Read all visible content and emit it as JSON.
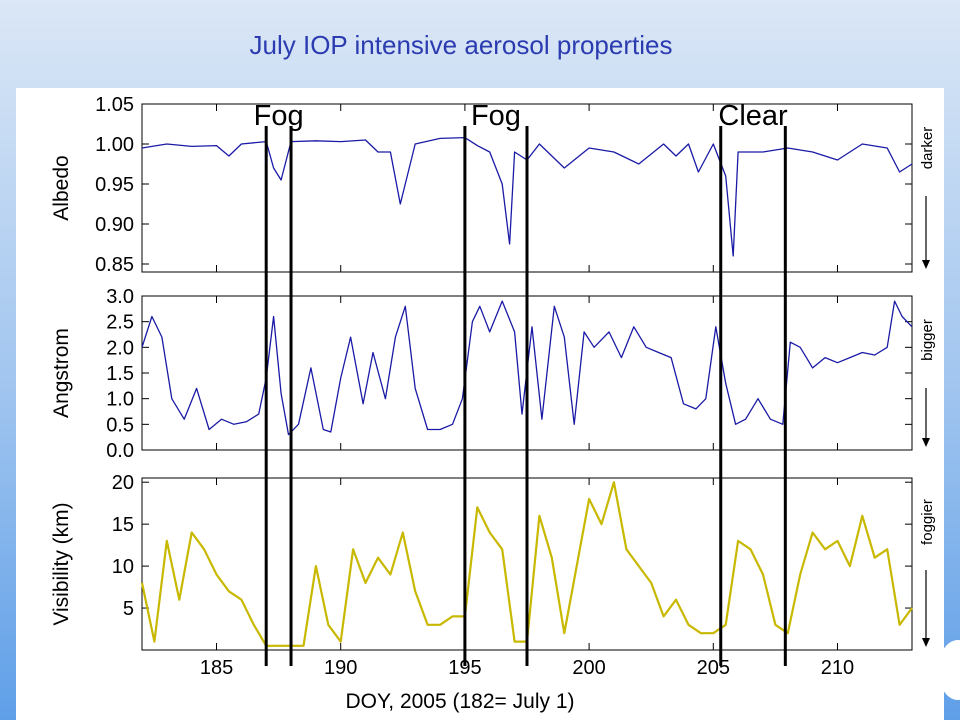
{
  "title": "July IOP intensive aerosol properties",
  "chart_data": {
    "type": "line",
    "x": {
      "label": "DOY, 2005 (182= July 1)",
      "range": [
        182,
        213
      ],
      "ticks": [
        185,
        190,
        195,
        200,
        205,
        210
      ]
    },
    "event_labels": [
      {
        "text": "Fog",
        "from_doy": 187.0,
        "to_doy": 188.0
      },
      {
        "text": "Fog",
        "from_doy": 195.0,
        "to_doy": 197.5
      },
      {
        "text": "Clear",
        "from_doy": 205.3,
        "to_doy": 207.9
      }
    ],
    "panels": [
      {
        "ylabel": "Albedo",
        "ylim": [
          0.84,
          1.05
        ],
        "yticks": [
          "1.05",
          "1.00",
          "0.95",
          "0.90",
          "0.85"
        ],
        "ytick_values": [
          1.05,
          1.0,
          0.95,
          0.9,
          0.85
        ],
        "side_label": "darker",
        "color": "#1a1aa6",
        "series": {
          "x": [
            182,
            183,
            184,
            185,
            185.5,
            186,
            187,
            187.3,
            187.6,
            188,
            189,
            190,
            191,
            191.5,
            192,
            192.4,
            193,
            194,
            195,
            195.5,
            196,
            196.5,
            196.8,
            197,
            197.5,
            198,
            199,
            200,
            201,
            202,
            203,
            203.5,
            204,
            204.4,
            205,
            205.5,
            205.8,
            206,
            207,
            208,
            209,
            210,
            211,
            212,
            212.5,
            213
          ],
          "values": [
            0.995,
            1.0,
            0.997,
            0.998,
            0.985,
            1.0,
            1.003,
            0.97,
            0.955,
            1.003,
            1.004,
            1.003,
            1.005,
            0.99,
            0.99,
            0.925,
            1.0,
            1.007,
            1.008,
            0.998,
            0.99,
            0.95,
            0.875,
            0.99,
            0.98,
            1.0,
            0.97,
            0.995,
            0.99,
            0.975,
            1.0,
            0.985,
            1.0,
            0.965,
            1.0,
            0.96,
            0.86,
            0.99,
            0.99,
            0.995,
            0.99,
            0.98,
            1.0,
            0.995,
            0.965,
            0.975
          ]
        }
      },
      {
        "ylabel": "Angstrom",
        "ylim": [
          0.0,
          3.0
        ],
        "yticks": [
          "3.0",
          "2.5",
          "2.0",
          "1.5",
          "1.0",
          "0.5",
          "0.0"
        ],
        "ytick_values": [
          3.0,
          2.5,
          2.0,
          1.5,
          1.0,
          0.5,
          0.0
        ],
        "side_label": "bigger",
        "color": "#1a1aa6",
        "series": {
          "x": [
            182,
            182.4,
            182.8,
            183.2,
            183.7,
            184.2,
            184.7,
            185.2,
            185.7,
            186.2,
            186.7,
            187.0,
            187.3,
            187.6,
            187.9,
            188.3,
            188.8,
            189.3,
            189.6,
            190.0,
            190.4,
            190.9,
            191.3,
            191.8,
            192.2,
            192.6,
            193.0,
            193.5,
            194.0,
            194.5,
            194.9,
            195.3,
            195.6,
            196.0,
            196.5,
            197.0,
            197.3,
            197.7,
            198.1,
            198.6,
            199.0,
            199.4,
            199.8,
            200.2,
            200.8,
            201.3,
            201.8,
            202.3,
            202.8,
            203.3,
            203.8,
            204.3,
            204.7,
            205.1,
            205.5,
            205.9,
            206.3,
            206.8,
            207.3,
            207.8,
            208.1,
            208.5,
            209.0,
            209.5,
            210.0,
            210.5,
            211.0,
            211.5,
            212.0,
            212.3,
            212.6,
            213
          ],
          "values": [
            2.0,
            2.6,
            2.2,
            1.0,
            0.6,
            1.2,
            0.4,
            0.6,
            0.5,
            0.55,
            0.7,
            1.4,
            2.6,
            1.1,
            0.3,
            0.5,
            1.6,
            0.4,
            0.35,
            1.4,
            2.2,
            0.9,
            1.9,
            1.0,
            2.2,
            2.8,
            1.2,
            0.4,
            0.4,
            0.5,
            1.0,
            2.5,
            2.8,
            2.3,
            2.9,
            2.3,
            0.7,
            2.4,
            0.6,
            2.8,
            2.2,
            0.5,
            2.3,
            2.0,
            2.3,
            1.8,
            2.4,
            2.0,
            1.9,
            1.8,
            0.9,
            0.8,
            1.0,
            2.4,
            1.3,
            0.5,
            0.6,
            1.0,
            0.6,
            0.5,
            2.1,
            2.0,
            1.6,
            1.8,
            1.7,
            1.8,
            1.9,
            1.85,
            2.0,
            2.9,
            2.6,
            2.4
          ]
        }
      },
      {
        "ylabel": "Visibility (km)",
        "ylim": [
          0,
          20.5
        ],
        "yticks": [
          "20",
          "15",
          "10",
          "5"
        ],
        "ytick_values": [
          20,
          15,
          10,
          5
        ],
        "side_label": "foggier",
        "color": "#c8b800",
        "series": {
          "x": [
            182,
            182.5,
            183,
            183.5,
            184,
            184.5,
            185,
            185.5,
            186,
            186.5,
            187,
            187.5,
            188,
            188.5,
            189,
            189.5,
            190,
            190.5,
            191,
            191.5,
            192,
            192.5,
            193,
            193.5,
            194,
            194.5,
            195,
            195.5,
            196,
            196.5,
            197,
            197.5,
            198,
            198.5,
            199,
            199.5,
            200,
            200.5,
            201,
            201.5,
            202,
            202.5,
            203,
            203.5,
            204,
            204.5,
            205,
            205.5,
            206,
            206.5,
            207,
            207.5,
            208,
            208.5,
            209,
            209.5,
            210,
            210.5,
            211,
            211.5,
            212,
            212.5,
            213
          ],
          "values": [
            8,
            1,
            13,
            6,
            14,
            12,
            9,
            7,
            6,
            3,
            0.5,
            0.5,
            0.5,
            0.5,
            10,
            3,
            1,
            12,
            8,
            11,
            9,
            14,
            7,
            3,
            3,
            4,
            4,
            17,
            14,
            12,
            1,
            1,
            16,
            11,
            2,
            10,
            18,
            15,
            20,
            12,
            10,
            8,
            4,
            6,
            3,
            2,
            2,
            3,
            13,
            12,
            9,
            3,
            2,
            9,
            14,
            12,
            13,
            10,
            16,
            11,
            12,
            3,
            5
          ]
        }
      }
    ]
  }
}
